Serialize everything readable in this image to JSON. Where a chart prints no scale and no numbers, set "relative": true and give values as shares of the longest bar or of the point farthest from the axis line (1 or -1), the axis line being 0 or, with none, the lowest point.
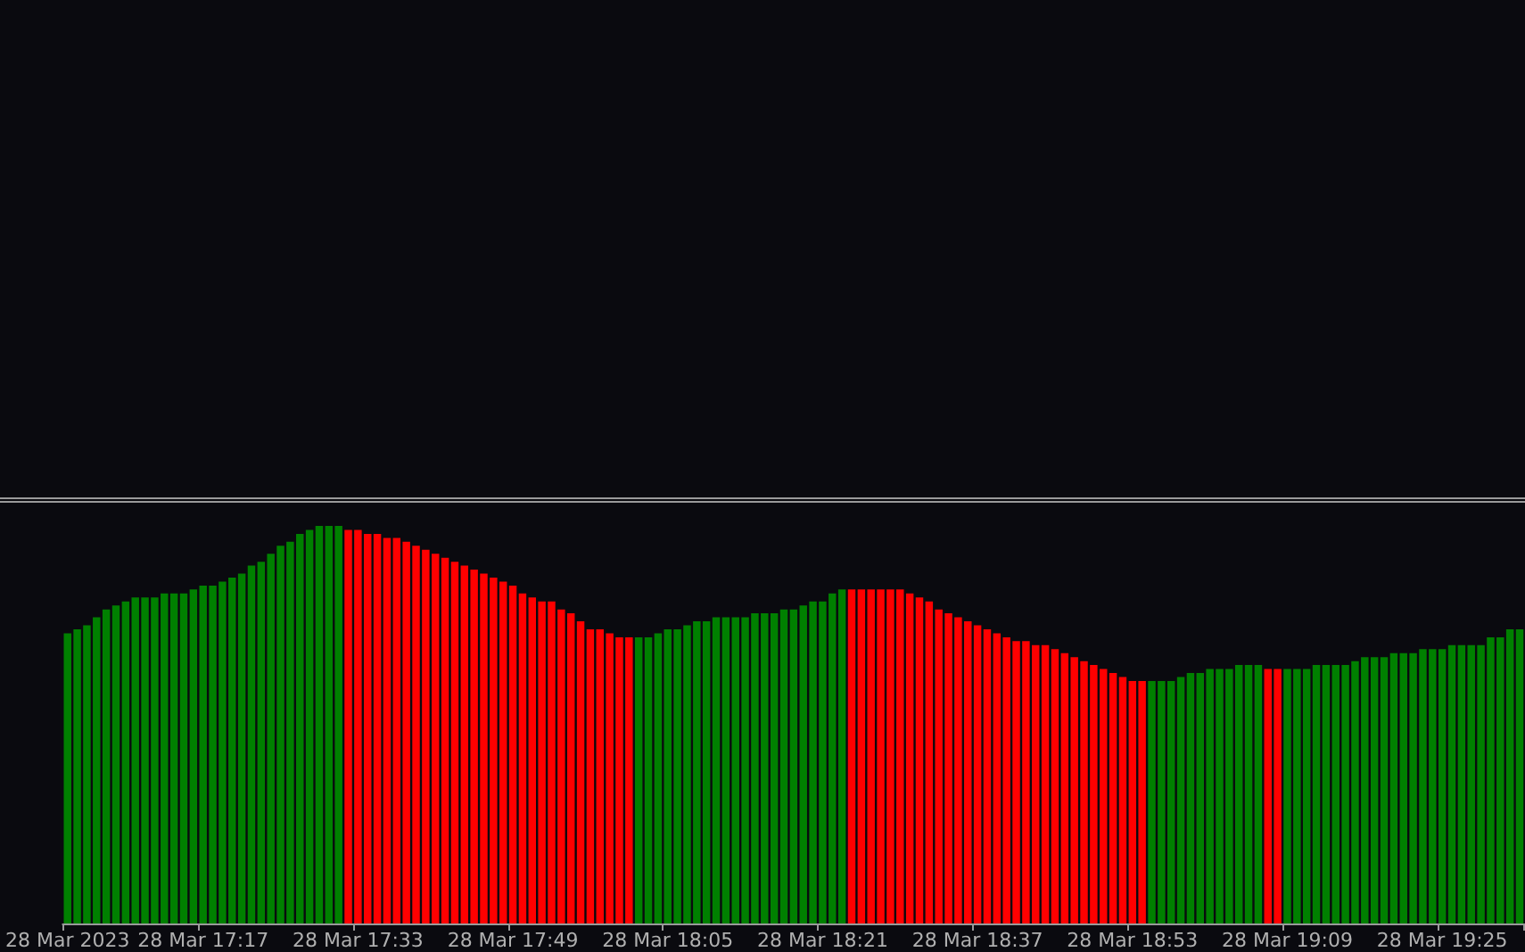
{
  "chart_data": {
    "type": "bar",
    "relative": true,
    "categories": [
      "28 Mar 2023",
      null,
      null,
      null,
      null,
      null,
      null,
      null,
      null,
      null,
      null,
      null,
      null,
      null,
      "28 Mar 17:17",
      null,
      null,
      null,
      null,
      null,
      null,
      null,
      null,
      null,
      null,
      null,
      null,
      null,
      null,
      null,
      "28 Mar 17:33",
      null,
      null,
      null,
      null,
      null,
      null,
      null,
      null,
      null,
      null,
      null,
      null,
      null,
      null,
      null,
      "28 Mar 17:49",
      null,
      null,
      null,
      null,
      null,
      null,
      null,
      null,
      null,
      null,
      null,
      null,
      null,
      null,
      null,
      "28 Mar 18:05",
      null,
      null,
      null,
      null,
      null,
      null,
      null,
      null,
      null,
      null,
      null,
      null,
      null,
      null,
      null,
      "28 Mar 18:21",
      null,
      null,
      null,
      null,
      null,
      null,
      null,
      null,
      null,
      null,
      null,
      null,
      null,
      null,
      null,
      "28 Mar 18:37",
      null,
      null,
      null,
      null,
      null,
      null,
      null,
      null,
      null,
      null,
      null,
      null,
      null,
      null,
      null,
      "28 Mar 18:53",
      null,
      null,
      null,
      null,
      null,
      null,
      null,
      null,
      null,
      null,
      null,
      null,
      null,
      null,
      null,
      "28 Mar 19:09",
      null,
      null,
      null,
      null,
      null,
      null,
      null,
      null,
      null,
      null,
      null,
      null,
      null,
      null,
      null,
      "28 Mar 19:25",
      null,
      null,
      null,
      null,
      null,
      null,
      null,
      null
    ],
    "values": [
      0.73,
      0.74,
      0.75,
      0.77,
      0.79,
      0.8,
      0.81,
      0.82,
      0.82,
      0.82,
      0.83,
      0.83,
      0.83,
      0.84,
      0.85,
      0.85,
      0.86,
      0.87,
      0.88,
      0.9,
      0.91,
      0.93,
      0.95,
      0.96,
      0.98,
      0.99,
      1,
      1,
      1,
      0.99,
      0.99,
      0.98,
      0.98,
      0.97,
      0.97,
      0.96,
      0.95,
      0.94,
      0.93,
      0.92,
      0.91,
      0.9,
      0.89,
      0.88,
      0.87,
      0.86,
      0.85,
      0.83,
      0.82,
      0.81,
      0.81,
      0.79,
      0.78,
      0.76,
      0.74,
      0.74,
      0.73,
      0.72,
      0.72,
      0.72,
      0.72,
      0.73,
      0.74,
      0.74,
      0.75,
      0.76,
      0.76,
      0.77,
      0.77,
      0.77,
      0.77,
      0.78,
      0.78,
      0.78,
      0.79,
      0.79,
      0.8,
      0.81,
      0.81,
      0.83,
      0.84,
      0.84,
      0.84,
      0.84,
      0.84,
      0.84,
      0.84,
      0.83,
      0.82,
      0.81,
      0.79,
      0.78,
      0.77,
      0.76,
      0.75,
      0.74,
      0.73,
      0.72,
      0.71,
      0.71,
      0.7,
      0.7,
      0.69,
      0.68,
      0.67,
      0.66,
      0.65,
      0.64,
      0.63,
      0.62,
      0.61,
      0.61,
      0.61,
      0.61,
      0.61,
      0.62,
      0.63,
      0.63,
      0.64,
      0.64,
      0.64,
      0.65,
      0.65,
      0.65,
      0.64,
      0.64,
      0.64,
      0.64,
      0.64,
      0.65,
      0.65,
      0.65,
      0.65,
      0.66,
      0.67,
      0.67,
      0.67,
      0.68,
      0.68,
      0.68,
      0.69,
      0.69,
      0.69,
      0.7,
      0.7,
      0.7,
      0.7,
      0.72,
      0.72,
      0.74,
      0.74
    ],
    "colors": [
      "#008000",
      "#008000",
      "#008000",
      "#008000",
      "#008000",
      "#008000",
      "#008000",
      "#008000",
      "#008000",
      "#008000",
      "#008000",
      "#008000",
      "#008000",
      "#008000",
      "#008000",
      "#008000",
      "#008000",
      "#008000",
      "#008000",
      "#008000",
      "#008000",
      "#008000",
      "#008000",
      "#008000",
      "#008000",
      "#008000",
      "#008000",
      "#008000",
      "#008000",
      "#ff0000",
      "#ff0000",
      "#ff0000",
      "#ff0000",
      "#ff0000",
      "#ff0000",
      "#ff0000",
      "#ff0000",
      "#ff0000",
      "#ff0000",
      "#ff0000",
      "#ff0000",
      "#ff0000",
      "#ff0000",
      "#ff0000",
      "#ff0000",
      "#ff0000",
      "#ff0000",
      "#ff0000",
      "#ff0000",
      "#ff0000",
      "#ff0000",
      "#ff0000",
      "#ff0000",
      "#ff0000",
      "#ff0000",
      "#ff0000",
      "#ff0000",
      "#ff0000",
      "#ff0000",
      "#008000",
      "#008000",
      "#008000",
      "#008000",
      "#008000",
      "#008000",
      "#008000",
      "#008000",
      "#008000",
      "#008000",
      "#008000",
      "#008000",
      "#008000",
      "#008000",
      "#008000",
      "#008000",
      "#008000",
      "#008000",
      "#008000",
      "#008000",
      "#008000",
      "#008000",
      "#ff0000",
      "#ff0000",
      "#ff0000",
      "#ff0000",
      "#ff0000",
      "#ff0000",
      "#ff0000",
      "#ff0000",
      "#ff0000",
      "#ff0000",
      "#ff0000",
      "#ff0000",
      "#ff0000",
      "#ff0000",
      "#ff0000",
      "#ff0000",
      "#ff0000",
      "#ff0000",
      "#ff0000",
      "#ff0000",
      "#ff0000",
      "#ff0000",
      "#ff0000",
      "#ff0000",
      "#ff0000",
      "#ff0000",
      "#ff0000",
      "#ff0000",
      "#ff0000",
      "#ff0000",
      "#ff0000",
      "#008000",
      "#008000",
      "#008000",
      "#008000",
      "#008000",
      "#008000",
      "#008000",
      "#008000",
      "#008000",
      "#008000",
      "#008000",
      "#008000",
      "#ff0000",
      "#ff0000",
      "#008000",
      "#008000",
      "#008000",
      "#008000",
      "#008000",
      "#008000",
      "#008000",
      "#008000",
      "#008000",
      "#008000",
      "#008000",
      "#008000",
      "#008000",
      "#008000",
      "#008000",
      "#008000",
      "#008000",
      "#008000",
      "#008000",
      "#008000",
      "#008000",
      "#008000",
      "#008000",
      "#008000",
      "#008000"
    ]
  }
}
